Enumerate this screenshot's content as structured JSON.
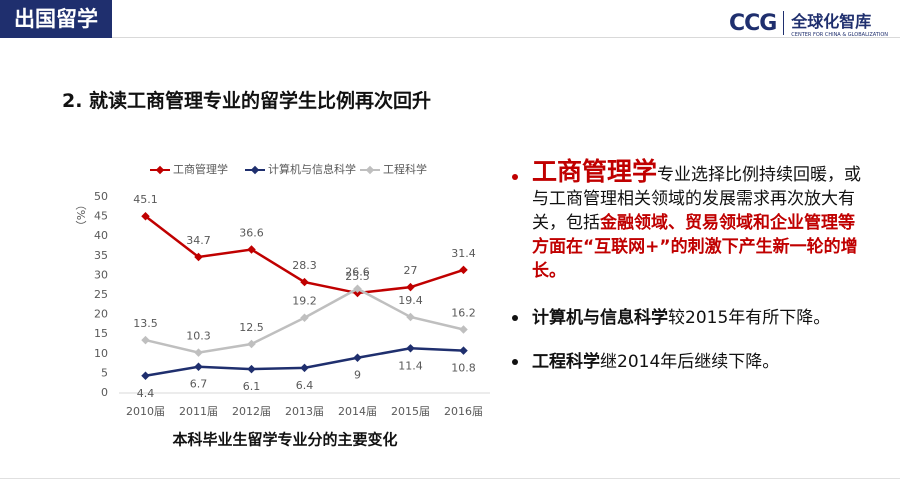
{
  "header": {
    "section": "出国留学",
    "logo": "CCG",
    "logo_name": "全球化智库",
    "logo_sub": "CENTER FOR CHINA & GLOBALIZATION"
  },
  "title": "2. 就读工商管理专业的留学生比例再次回升",
  "chart_data": {
    "type": "line",
    "title": "本科毕业生留学专业分的主要变化",
    "y_label": "（%）",
    "categories": [
      "2010届",
      "2011届",
      "2012届",
      "2013届",
      "2014届",
      "2015届",
      "2016届"
    ],
    "series": [
      {
        "name": "工商管理学",
        "color": "#c00000",
        "values": [
          45.1,
          34.7,
          36.6,
          28.3,
          25.5,
          27,
          31.4
        ]
      },
      {
        "name": "计算机与信息科学",
        "color": "#1f2f6e",
        "values": [
          4.4,
          6.7,
          6.1,
          6.4,
          9,
          11.4,
          10.8
        ]
      },
      {
        "name": "工程科学",
        "color": "#bfbfbf",
        "values": [
          13.5,
          10.3,
          12.5,
          19.2,
          26.6,
          19.4,
          16.2
        ]
      }
    ],
    "ylim": [
      0,
      50
    ],
    "yticks": [
      0,
      5,
      10,
      15,
      20,
      25,
      30,
      35,
      40,
      45,
      50
    ],
    "grid": false,
    "legend": "top"
  },
  "bullets": [
    [
      "工商管理学",
      "专业选择比例持续回暖，或与工商管理相关领域的发展需求再次放大有关，包括",
      "金融领域、贸易领域和企业管理等方面在“互联网+”的刺激下产生新一轮的增长。"
    ],
    [
      "计算机与信息科学",
      "较2015年有所下降。"
    ],
    [
      "工程科学",
      "继2014年后继续下降。"
    ]
  ]
}
